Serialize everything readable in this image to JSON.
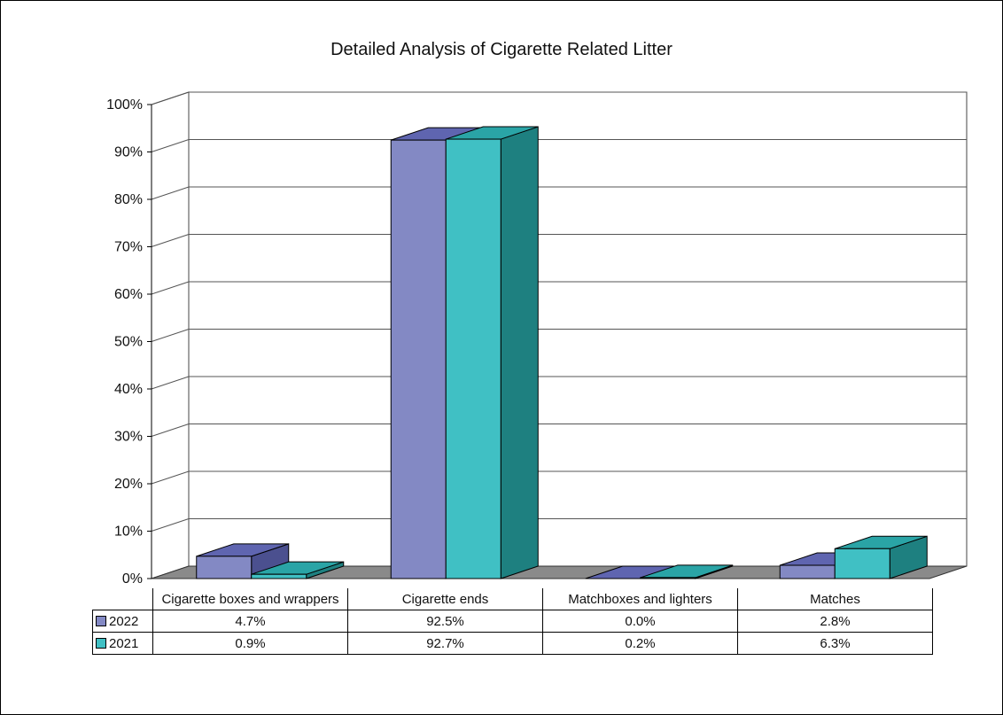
{
  "chart_data": {
    "type": "bar",
    "title": "Detailed Analysis of Cigarette Related Litter",
    "categories": [
      "Cigarette boxes and wrappers",
      "Cigarette ends",
      "Matchboxes and lighters",
      "Matches"
    ],
    "series": [
      {
        "name": "2022",
        "values": [
          4.7,
          92.5,
          0.0,
          2.8
        ],
        "labels": [
          "4.7%",
          "92.5%",
          "0.0%",
          "2.8%"
        ],
        "color": "#8389C4",
        "top_color": "#5F65B0"
      },
      {
        "name": "2021",
        "values": [
          0.9,
          92.7,
          0.2,
          6.3
        ],
        "labels": [
          "0.9%",
          "92.7%",
          "0.2%",
          "6.3%"
        ],
        "color": "#40C0C4",
        "top_color": "#2AA4A6",
        "side_color": "#1E8080"
      }
    ],
    "ylim": [
      0,
      100
    ],
    "yticks": [
      "0%",
      "10%",
      "20%",
      "30%",
      "40%",
      "50%",
      "60%",
      "70%",
      "80%",
      "90%",
      "100%"
    ],
    "grid": true,
    "data_table": true,
    "legend": "in-table"
  }
}
